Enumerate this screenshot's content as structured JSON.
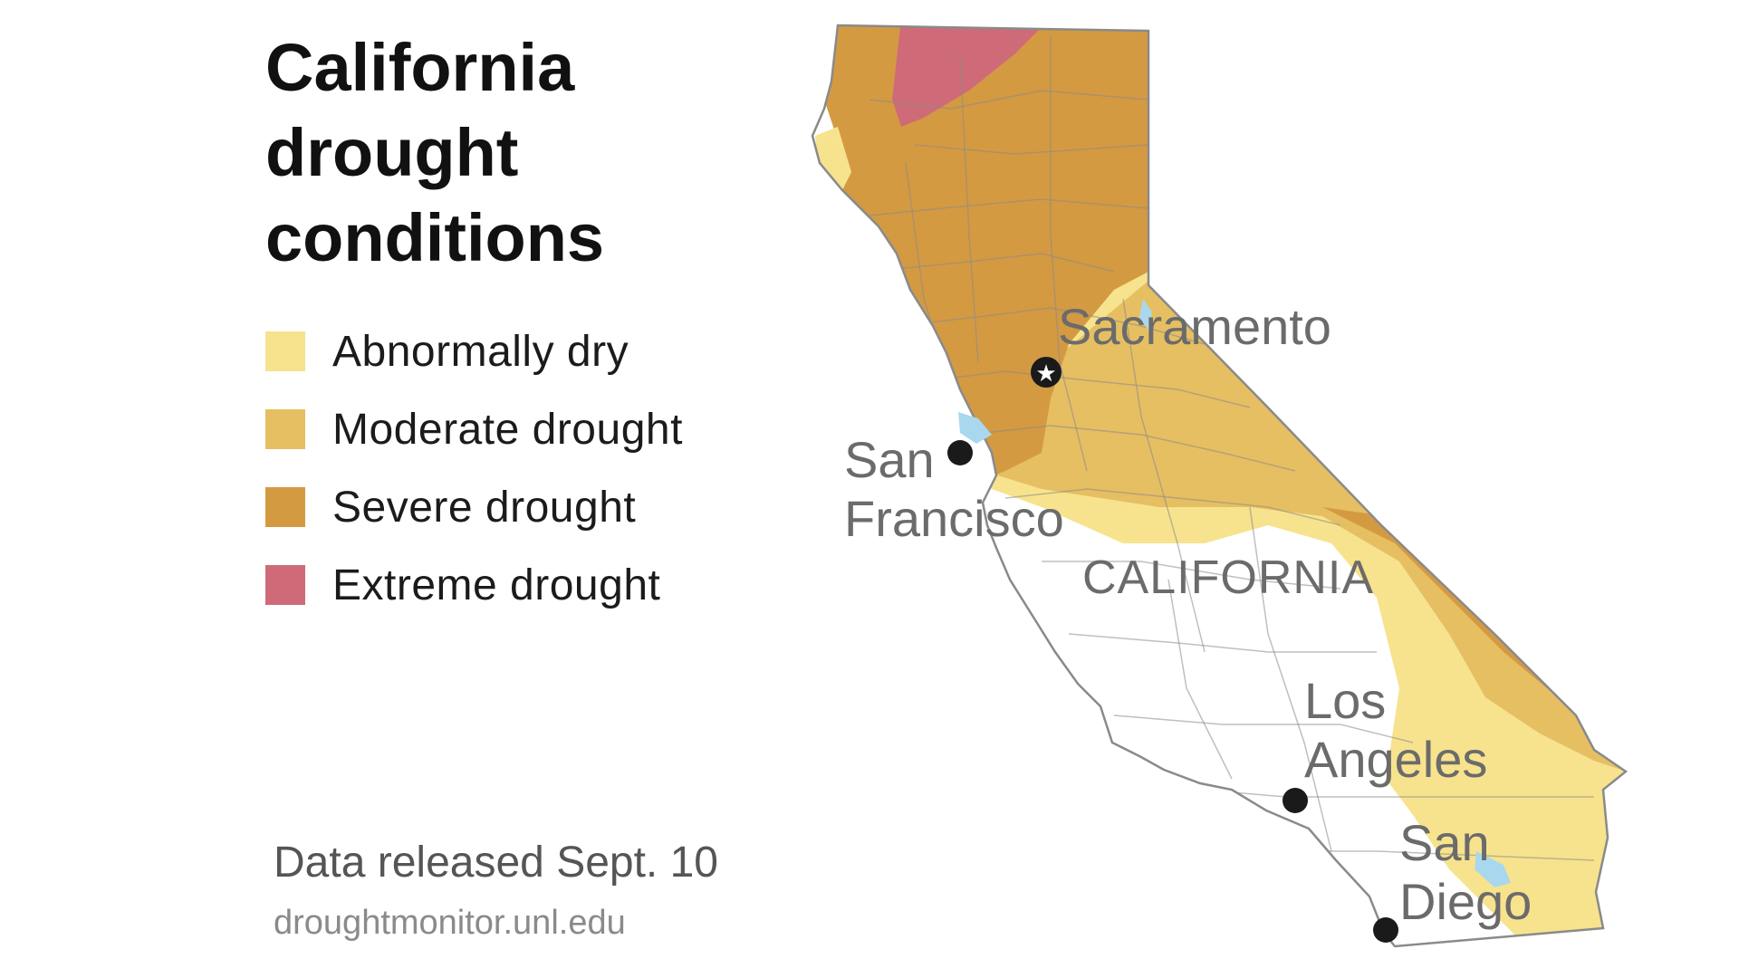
{
  "title": {
    "line1": "California",
    "line2": "drought",
    "line3": "conditions"
  },
  "legend": [
    {
      "label": "Abnormally dry",
      "color": "#f7e38d"
    },
    {
      "label": "Moderate drought",
      "color": "#e6bf62"
    },
    {
      "label": "Severe drought",
      "color": "#d49a42"
    },
    {
      "label": "Extreme drought",
      "color": "#cf6b78"
    }
  ],
  "map": {
    "state_label": "CALIFORNIA",
    "cities": {
      "sacramento": "Sacramento",
      "san_francisco_1": "San",
      "san_francisco_2": "Francisco",
      "los_angeles_1": "Los",
      "los_angeles_2": "Angeles",
      "san_diego_1": "San",
      "san_diego_2": "Diego"
    },
    "water_color": "#a9d8ee",
    "outline_color": "#8a8a8a"
  },
  "footer": {
    "released": "Data released Sept. 10",
    "source": "droughtmonitor.unl.edu"
  }
}
